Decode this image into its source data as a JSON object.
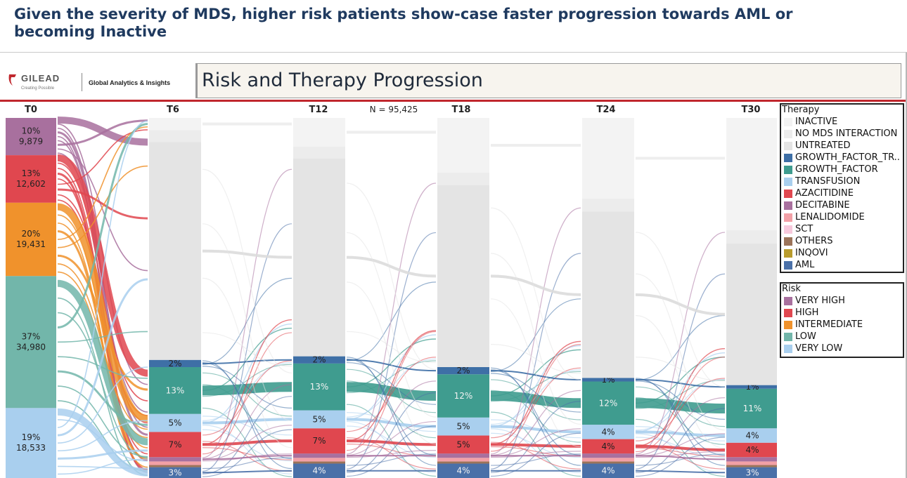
{
  "slide": {
    "title": "Given the severity of MDS, higher risk patients show-case faster progression towards AML or becoming Inactive"
  },
  "logo": {
    "brand": "GILEAD",
    "tagline": "Creating Possible",
    "unit": "Global Analytics & Insights"
  },
  "dashboard": {
    "title": "Risk and Therapy Progression"
  },
  "colors": {
    "accent_red": "#c0272d",
    "title_navy": "#1f3a5f"
  },
  "chart_data": {
    "type": "sankey",
    "n_label": "N = 95,425",
    "timepoints": [
      "T0",
      "T6",
      "T12",
      "T18",
      "T24",
      "T30"
    ],
    "t0_risk": [
      {
        "risk": "VERY HIGH",
        "pct": "10%",
        "count": "9,879",
        "value": 9879
      },
      {
        "risk": "HIGH",
        "pct": "13%",
        "count": "12,602",
        "value": 12602
      },
      {
        "risk": "INTERMEDIATE",
        "pct": "20%",
        "count": "19,431",
        "value": 19431
      },
      {
        "risk": "LOW",
        "pct": "37%",
        "count": "34,980",
        "value": 34980
      },
      {
        "risk": "VERY LOW",
        "pct": "19%",
        "count": "18,533",
        "value": 18533
      }
    ],
    "therapy_by_time": [
      {
        "time": "T6",
        "AML": "3%",
        "GROWTH_FACTOR_TR": "2%",
        "GROWTH_FACTOR": "13%",
        "TRANSFUSION": "5%",
        "AZACITIDINE": "7%"
      },
      {
        "time": "T12",
        "AML": "4%",
        "GROWTH_FACTOR_TR": "2%",
        "GROWTH_FACTOR": "13%",
        "TRANSFUSION": "5%",
        "AZACITIDINE": "7%"
      },
      {
        "time": "T18",
        "AML": "4%",
        "GROWTH_FACTOR_TR": "2%",
        "GROWTH_FACTOR": "12%",
        "TRANSFUSION": "5%",
        "AZACITIDINE": "5%"
      },
      {
        "time": "T24",
        "AML": "4%",
        "GROWTH_FACTOR_TR": "1%",
        "GROWTH_FACTOR": "12%",
        "TRANSFUSION": "4%",
        "AZACITIDINE": "4%"
      },
      {
        "time": "T30",
        "AML": "3%",
        "GROWTH_FACTOR_TR": "1%",
        "GROWTH_FACTOR": "11%",
        "TRANSFUSION": "4%",
        "AZACITIDINE": "4%"
      }
    ],
    "therapy_legend": {
      "title": "Therapy",
      "items": [
        {
          "label": "INACTIVE",
          "color": "#f3f3f3"
        },
        {
          "label": "NO MDS INTERACTION",
          "color": "#ececec"
        },
        {
          "label": "UNTREATED",
          "color": "#e4e4e4"
        },
        {
          "label": "GROWTH_FACTOR_TR..",
          "color": "#3e6fa6"
        },
        {
          "label": "GROWTH_FACTOR",
          "color": "#3f9c8f"
        },
        {
          "label": "TRANSFUSION",
          "color": "#a9cfee"
        },
        {
          "label": "AZACITIDINE",
          "color": "#e0474f"
        },
        {
          "label": "DECITABINE",
          "color": "#a8709e"
        },
        {
          "label": "LENALIDOMIDE",
          "color": "#f2a0a6"
        },
        {
          "label": "SCT",
          "color": "#f7c9dc"
        },
        {
          "label": "OTHERS",
          "color": "#9b7359"
        },
        {
          "label": "INQOVI",
          "color": "#b89b2c"
        },
        {
          "label": "AML",
          "color": "#4a70a8"
        }
      ]
    },
    "risk_legend": {
      "title": "Risk",
      "items": [
        {
          "label": "VERY HIGH",
          "color": "#a8709e"
        },
        {
          "label": "HIGH",
          "color": "#e0474f"
        },
        {
          "label": "INTERMEDIATE",
          "color": "#f0922c"
        },
        {
          "label": "LOW",
          "color": "#72b6aa"
        },
        {
          "label": "VERY LOW",
          "color": "#a9cfee"
        }
      ]
    }
  }
}
